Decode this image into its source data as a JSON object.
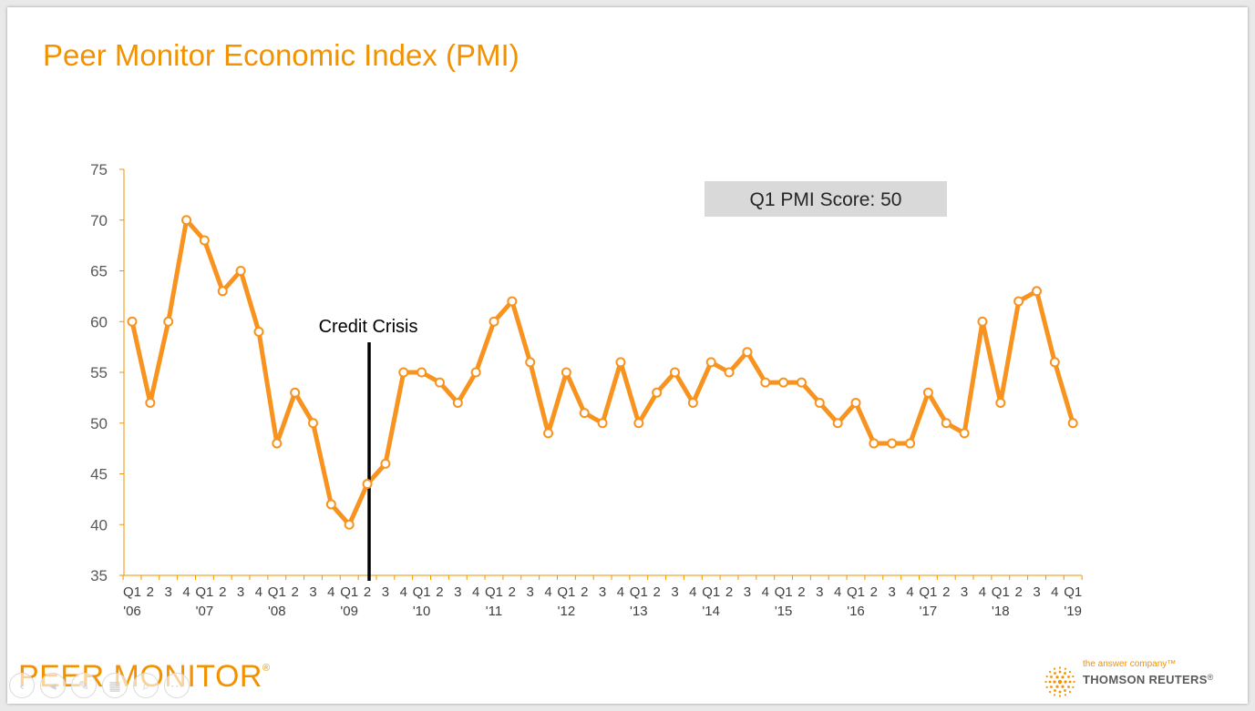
{
  "slide": {
    "title": "Peer Monitor Economic Index (PMI)",
    "brand": "PEER MONITOR",
    "brand_mark": "®",
    "partner_tagline": "the answer company™",
    "partner_name": "THOMSON REUTERS",
    "partner_mark": "®"
  },
  "nav_icons": [
    "back-icon",
    "previous-icon",
    "pen-icon",
    "slides-icon",
    "zoom-icon",
    "more-icon"
  ],
  "colors": {
    "accent": "#f39200",
    "line": "#f7931e",
    "axis": "#f39200",
    "marker_fill": "#ffffff",
    "score_box": "#d9d9d9"
  },
  "chart_data": {
    "type": "line",
    "title": "",
    "xlabel": "",
    "ylabel": "",
    "ylim": [
      35,
      75
    ],
    "yticks": [
      35,
      40,
      45,
      50,
      55,
      60,
      65,
      70,
      75
    ],
    "grid": false,
    "x_quarter_labels": [
      "Q1",
      "2",
      "3",
      "4",
      "Q1",
      "2",
      "3",
      "4",
      "Q1",
      "2",
      "3",
      "4",
      "Q1",
      "2",
      "3",
      "4",
      "Q1",
      "2",
      "3",
      "4",
      "Q1",
      "2",
      "3",
      "4",
      "Q1",
      "2",
      "3",
      "4",
      "Q1",
      "2",
      "3",
      "4",
      "Q1",
      "2",
      "3",
      "4",
      "Q1",
      "2",
      "3",
      "4",
      "Q1",
      "2",
      "3",
      "4",
      "Q1",
      "2",
      "3",
      "4",
      "Q1",
      "2",
      "3",
      "4",
      "Q1"
    ],
    "x_year_labels": [
      {
        "index": 0,
        "label": "'06"
      },
      {
        "index": 4,
        "label": "'07"
      },
      {
        "index": 8,
        "label": "'08"
      },
      {
        "index": 12,
        "label": "'09"
      },
      {
        "index": 16,
        "label": "'10"
      },
      {
        "index": 20,
        "label": "'11"
      },
      {
        "index": 24,
        "label": "'12"
      },
      {
        "index": 28,
        "label": "'13"
      },
      {
        "index": 32,
        "label": "'14"
      },
      {
        "index": 36,
        "label": "'15"
      },
      {
        "index": 40,
        "label": "'16"
      },
      {
        "index": 44,
        "label": "'17"
      },
      {
        "index": 48,
        "label": "'18"
      },
      {
        "index": 52,
        "label": "'19"
      }
    ],
    "series": [
      {
        "name": "",
        "values": [
          60,
          52,
          60,
          70,
          68,
          63,
          65,
          59,
          48,
          53,
          50,
          42,
          40,
          44,
          46,
          55,
          55,
          54,
          52,
          55,
          60,
          62,
          56,
          49,
          55,
          51,
          50,
          56,
          50,
          53,
          55,
          52,
          56,
          55,
          57,
          54,
          54,
          54,
          52,
          50,
          52,
          48,
          48,
          48,
          53,
          50,
          49,
          60,
          52,
          62,
          63,
          56,
          50
        ]
      }
    ],
    "annotations": [
      {
        "type": "vline",
        "x": 13.1,
        "label": "Credit Crisis"
      },
      {
        "type": "box",
        "text": "Q1 PMI Score: 50"
      }
    ]
  }
}
